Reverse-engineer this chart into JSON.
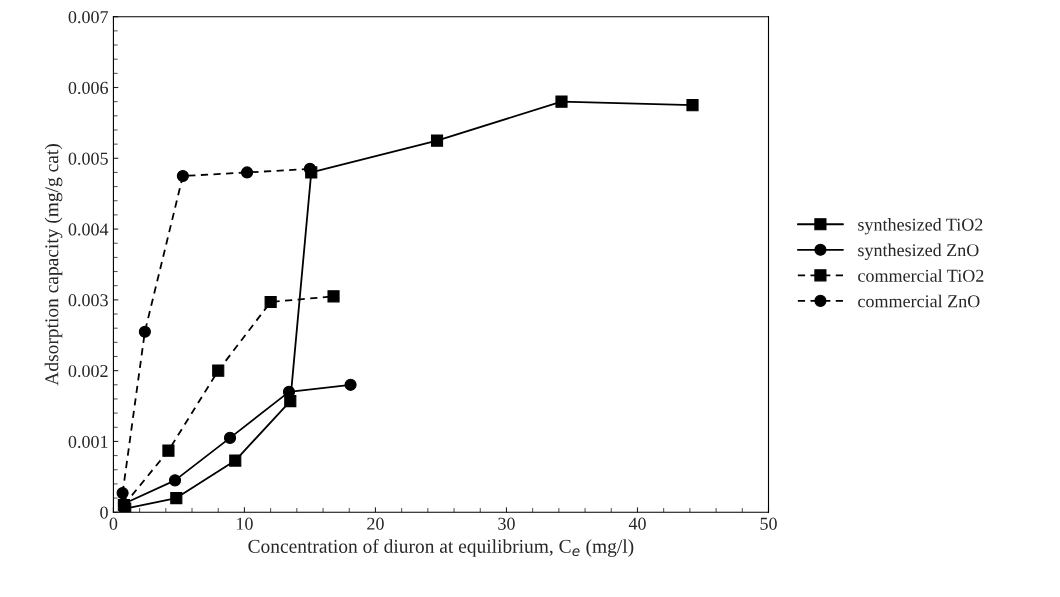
{
  "chart_data": {
    "type": "line",
    "xlabel": "Concentration of diuron at equilibrium, C$_{e}$ (mg/l)",
    "ylabel": "Adsorption capacity (mg/g cat)",
    "xlim": [
      0,
      50
    ],
    "xticks": [
      0,
      10,
      20,
      30,
      40,
      50
    ],
    "ylim": [
      0,
      0.007
    ],
    "yticks": [
      0,
      0.001,
      0.002,
      0.003,
      0.004,
      0.005,
      0.006,
      0.007
    ],
    "grid": false,
    "legend": "right",
    "series": [
      {
        "name": "synthesized TiO2",
        "color": "#000000",
        "marker": "square",
        "line_style": "solid",
        "x": [
          0.9,
          4.8,
          9.3,
          13.5,
          15.1,
          24.7,
          34.2,
          44.2
        ],
        "values": [
          5e-05,
          0.0002,
          0.00073,
          0.00157,
          0.0048,
          0.00525,
          0.0058,
          0.00575
        ]
      },
      {
        "name": "synthesized ZnO",
        "color": "#000000",
        "marker": "circle",
        "line_style": "solid",
        "x": [
          0.8,
          4.7,
          8.9,
          13.4,
          18.1
        ],
        "values": [
          0.00012,
          0.00045,
          0.00105,
          0.0017,
          0.0018
        ]
      },
      {
        "name": "commercial TiO2",
        "color": "#000000",
        "marker": "square",
        "line_style": "dashed",
        "x": [
          0.8,
          4.2,
          8.0,
          12.0,
          16.8
        ],
        "values": [
          0.0001,
          0.00087,
          0.002,
          0.00297,
          0.00305
        ]
      },
      {
        "name": "commercial ZnO",
        "color": "#000000",
        "marker": "circle",
        "line_style": "dashed",
        "x": [
          0.7,
          2.4,
          5.3,
          10.2,
          15.0
        ],
        "values": [
          0.00027,
          0.00255,
          0.00475,
          0.0048,
          0.00485
        ]
      }
    ]
  }
}
